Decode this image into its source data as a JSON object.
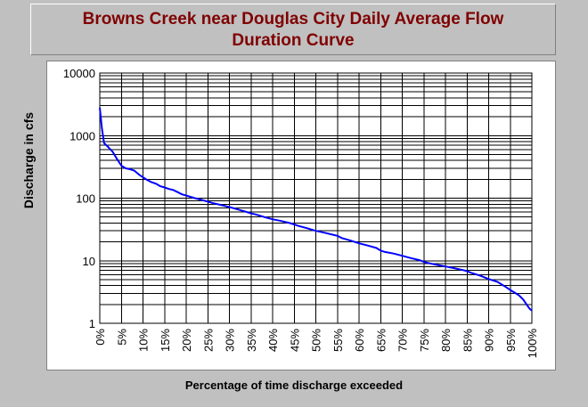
{
  "chart_data": {
    "type": "line",
    "title_line1": "Browns Creek near Douglas City Daily Average Flow",
    "title_line2": "Duration Curve",
    "xlabel": "Percentage of time discharge exceeded",
    "ylabel": "Discharge in cfs",
    "x_unit": "percent",
    "xlim": [
      0,
      100
    ],
    "ylim": [
      1,
      10000
    ],
    "y_scale": "log",
    "grid": true,
    "x_ticks": [
      "0%",
      "5%",
      "10%",
      "15%",
      "20%",
      "25%",
      "30%",
      "35%",
      "40%",
      "45%",
      "50%",
      "55%",
      "60%",
      "65%",
      "70%",
      "75%",
      "80%",
      "85%",
      "90%",
      "95%",
      "100%"
    ],
    "y_ticks": [
      "1",
      "10",
      "100",
      "1000",
      "10000"
    ],
    "series": [
      {
        "color": "#0000ff",
        "x": [
          0,
          0.5,
          1,
          2,
          3,
          4,
          5,
          6,
          7,
          8,
          9,
          10,
          11,
          12,
          13,
          14,
          15,
          16,
          17,
          18,
          19,
          20,
          22,
          24,
          25,
          26,
          28,
          30,
          32,
          34,
          35,
          36,
          38,
          40,
          42,
          44,
          45,
          46,
          48,
          50,
          52,
          54,
          55,
          56,
          58,
          60,
          62,
          64,
          65,
          66,
          68,
          70,
          72,
          74,
          75,
          76,
          78,
          80,
          82,
          84,
          85,
          86,
          88,
          90,
          92,
          94,
          95,
          96,
          97,
          98,
          99,
          99.5,
          100
        ],
        "y": [
          2800,
          1300,
          760,
          650,
          550,
          420,
          330,
          300,
          290,
          275,
          240,
          215,
          195,
          180,
          170,
          155,
          148,
          140,
          135,
          125,
          115,
          110,
          100,
          92,
          88,
          84,
          78,
          72,
          66,
          60,
          57,
          55,
          50,
          46,
          43,
          40,
          38,
          36,
          33,
          30,
          28,
          26,
          25,
          23,
          21,
          19,
          17.5,
          16,
          14.5,
          13.8,
          13,
          12,
          11,
          10.2,
          9.6,
          9.2,
          8.6,
          8.1,
          7.6,
          7.1,
          6.8,
          6.4,
          5.8,
          5.1,
          4.6,
          3.8,
          3.4,
          3.1,
          2.8,
          2.4,
          1.9,
          1.7,
          1.6
        ]
      }
    ]
  }
}
